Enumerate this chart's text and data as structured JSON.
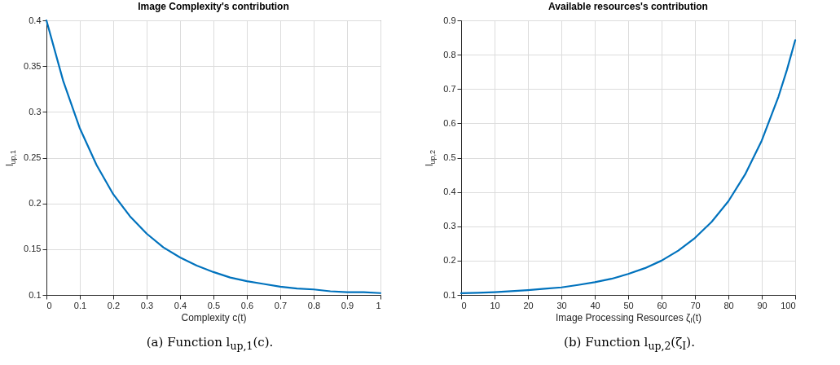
{
  "chart_data": [
    {
      "type": "line",
      "title": "Image Complexity's contribution",
      "xlabel": "Complexity c(t)",
      "ylabel": "l$_{up,1}$",
      "x": [
        0,
        0.05,
        0.1,
        0.15,
        0.2,
        0.25,
        0.3,
        0.35,
        0.4,
        0.45,
        0.5,
        0.55,
        0.6,
        0.65,
        0.7,
        0.75,
        0.8,
        0.85,
        0.9,
        0.95,
        1
      ],
      "series": [
        {
          "color": "#0072bd",
          "values": [
            0.4,
            0.334,
            0.282,
            0.242,
            0.21,
            0.186,
            0.167,
            0.152,
            0.141,
            0.132,
            0.125,
            0.119,
            0.115,
            0.112,
            0.109,
            0.107,
            0.106,
            0.104,
            0.103,
            0.103,
            0.102
          ]
        }
      ],
      "xlim": [
        0,
        1
      ],
      "xticks": [
        0,
        0.1,
        0.2,
        0.3,
        0.4,
        0.5,
        0.6,
        0.7,
        0.8,
        0.9,
        1
      ],
      "ylim": [
        0.1,
        0.4
      ],
      "yticks": [
        0.1,
        0.15,
        0.2,
        0.25,
        0.3,
        0.35,
        0.4
      ],
      "grid": true,
      "line_style": "solid",
      "annotations": [
        "(a) Function l$_{up,1}$(c)."
      ]
    },
    {
      "type": "line",
      "title": "Available resources's contribution",
      "xlabel": "Image Processing Resources ζ$_{I}$(t)",
      "ylabel": "l$_{up,2}$",
      "x": [
        0,
        5,
        10,
        15,
        20,
        25,
        30,
        35,
        40,
        45,
        50,
        55,
        60,
        65,
        70,
        75,
        80,
        85,
        90,
        95,
        97.5,
        100
      ],
      "series": [
        {
          "color": "#0072bd",
          "values": [
            0.105,
            0.106,
            0.108,
            0.111,
            0.114,
            0.118,
            0.122,
            0.129,
            0.137,
            0.147,
            0.161,
            0.178,
            0.2,
            0.229,
            0.266,
            0.313,
            0.373,
            0.451,
            0.55,
            0.678,
            0.755,
            0.842
          ]
        }
      ],
      "xlim": [
        0,
        100
      ],
      "xticks": [
        0,
        10,
        20,
        30,
        40,
        50,
        60,
        70,
        80,
        90,
        100
      ],
      "ylim": [
        0.1,
        0.9
      ],
      "yticks": [
        0.1,
        0.2,
        0.3,
        0.4,
        0.5,
        0.6,
        0.7,
        0.8,
        0.9
      ],
      "grid": true,
      "line_style": "solid",
      "annotations": [
        "(b) Function l$_{up,2}$(ζ$_{I}$)."
      ]
    }
  ]
}
